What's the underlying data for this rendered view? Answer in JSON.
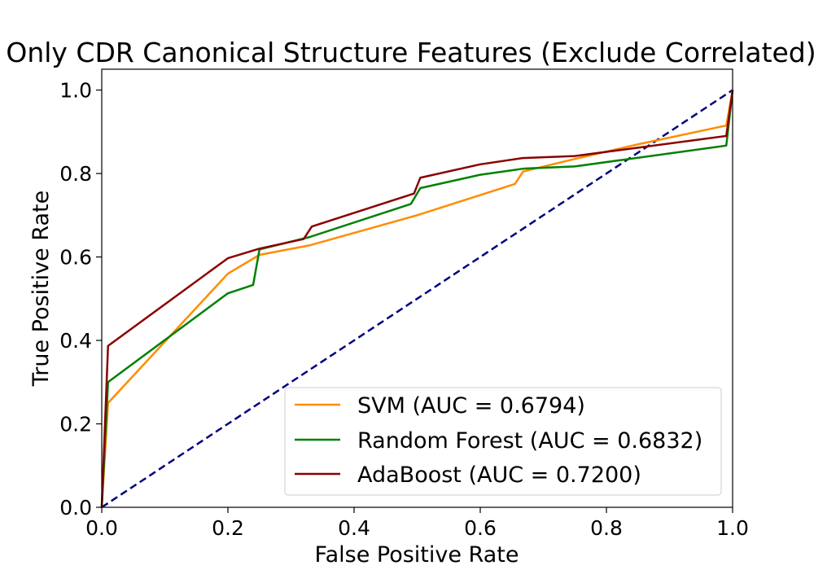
{
  "chart_data": {
    "type": "line",
    "title": "Only CDR Canonical Structure Features (Exclude Correlated)",
    "xlabel": "False Positive Rate",
    "ylabel": "True Positive Rate",
    "xlim": [
      0.0,
      1.0
    ],
    "ylim": [
      0.0,
      1.05
    ],
    "xticks": [
      "0.0",
      "0.2",
      "0.4",
      "0.6",
      "0.8",
      "1.0"
    ],
    "yticks": [
      "0.0",
      "0.2",
      "0.4",
      "0.6",
      "0.8",
      "1.0"
    ],
    "grid": false,
    "legend_position": "lower right",
    "series": [
      {
        "name": "SVM (AUC = 0.6794)",
        "color": "#ff8c00",
        "x": [
          0.0,
          0.01,
          0.2,
          0.25,
          0.33,
          0.5,
          0.655,
          0.668,
          0.75,
          0.85,
          0.99,
          1.0
        ],
        "y": [
          0.0,
          0.25,
          0.56,
          0.605,
          0.628,
          0.7,
          0.775,
          0.805,
          0.835,
          0.87,
          0.915,
          1.0
        ]
      },
      {
        "name": "Random Forest (AUC = 0.6832)",
        "color": "#008000",
        "x": [
          0.0,
          0.01,
          0.2,
          0.24,
          0.25,
          0.33,
          0.49,
          0.505,
          0.6,
          0.67,
          0.75,
          0.99,
          1.0
        ],
        "y": [
          0.0,
          0.3,
          0.513,
          0.533,
          0.618,
          0.648,
          0.727,
          0.765,
          0.797,
          0.812,
          0.817,
          0.867,
          1.0
        ]
      },
      {
        "name": "AdaBoost (AUC = 0.7200)",
        "color": "#8b0000",
        "x": [
          0.0,
          0.01,
          0.2,
          0.25,
          0.32,
          0.333,
          0.495,
          0.505,
          0.6,
          0.667,
          0.75,
          0.99,
          1.0
        ],
        "y": [
          0.0,
          0.387,
          0.597,
          0.62,
          0.643,
          0.673,
          0.752,
          0.79,
          0.822,
          0.837,
          0.842,
          0.89,
          1.0
        ]
      }
    ],
    "reference_line": {
      "color": "#000080",
      "style": "dashed",
      "x": [
        0.0,
        1.0
      ],
      "y": [
        0.0,
        1.0
      ]
    }
  }
}
